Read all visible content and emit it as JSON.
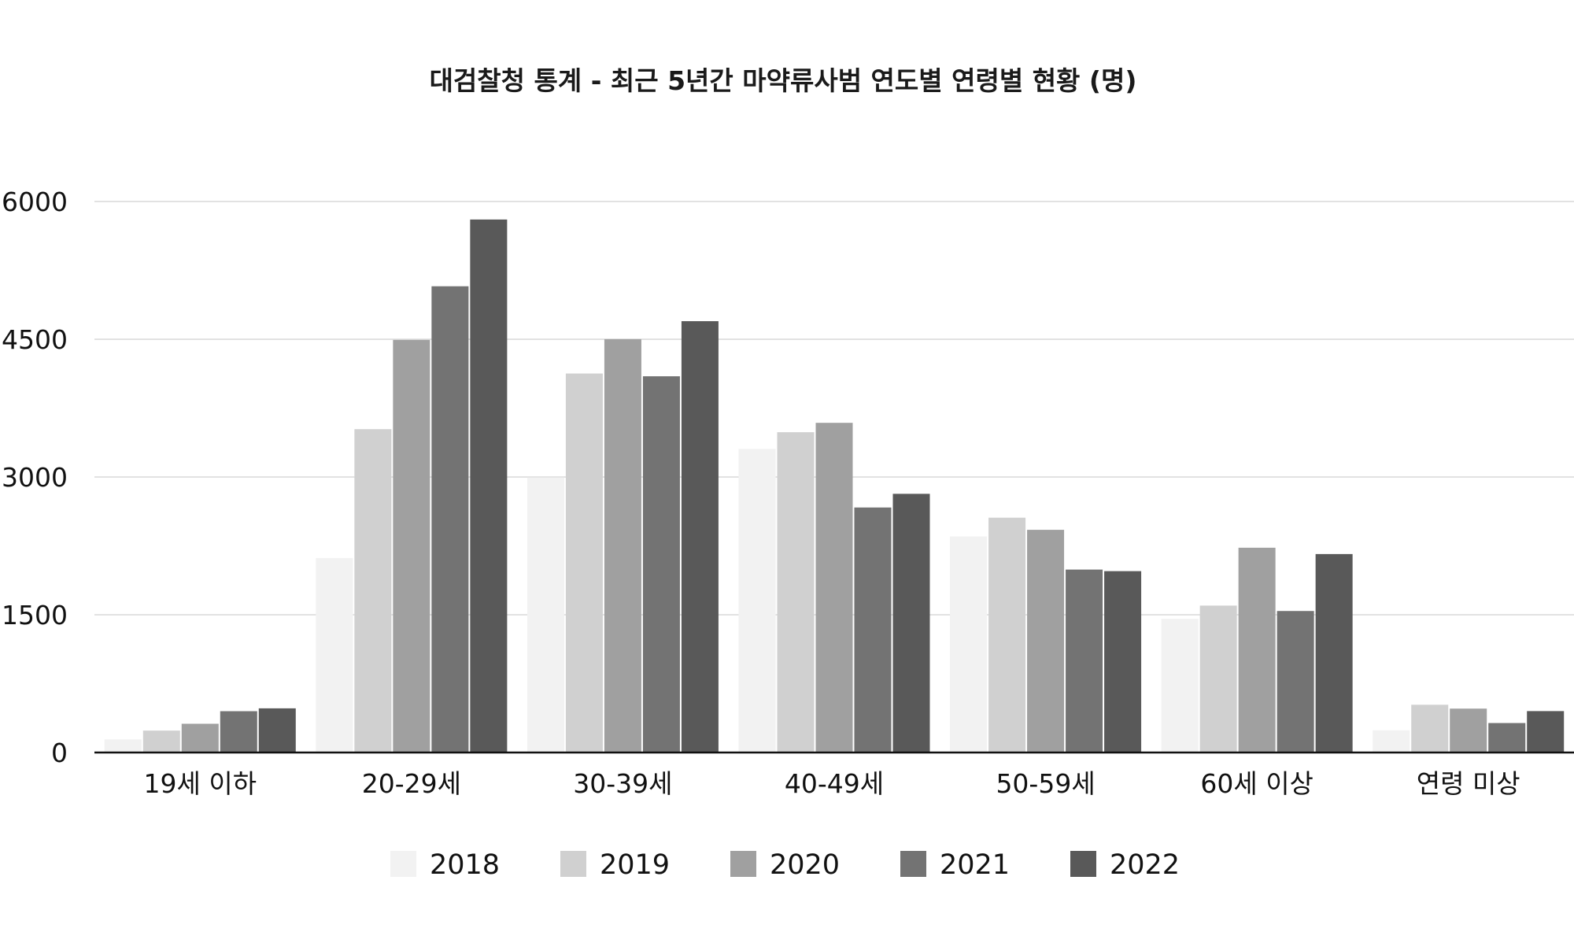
{
  "chart_data": {
    "type": "bar",
    "title": "대검찰청 통계 - 최근 5년간 마약류사범 연도별 연령별 현황 (명)",
    "xlabel": "",
    "ylabel": "",
    "ylim": [
      0,
      6000
    ],
    "yticks": [
      "0",
      "1500",
      "3000",
      "4500",
      "6000"
    ],
    "grid": true,
    "legend_position": "bottom",
    "categories": [
      "19세 이하",
      "20-29세",
      "30-39세",
      "40-49세",
      "50-59세",
      "60세 이상",
      "연령 미상"
    ],
    "series": [
      {
        "name": "2018",
        "color": "#f2f2f2",
        "values": [
          143,
          2118,
          2996,
          3306,
          2353,
          1455,
          242
        ]
      },
      {
        "name": "2019",
        "color": "#d0d0d0",
        "values": [
          239,
          3521,
          4127,
          3488,
          2557,
          1600,
          520
        ]
      },
      {
        "name": "2020",
        "color": "#a0a0a0",
        "values": [
          313,
          4493,
          4501,
          3590,
          2425,
          2230,
          478
        ]
      },
      {
        "name": "2021",
        "color": "#737373",
        "values": [
          450,
          5077,
          4097,
          2668,
          1992,
          1541,
          321
        ]
      },
      {
        "name": "2022",
        "color": "#595959",
        "values": [
          481,
          5804,
          4697,
          2817,
          1975,
          2161,
          451
        ]
      }
    ]
  }
}
